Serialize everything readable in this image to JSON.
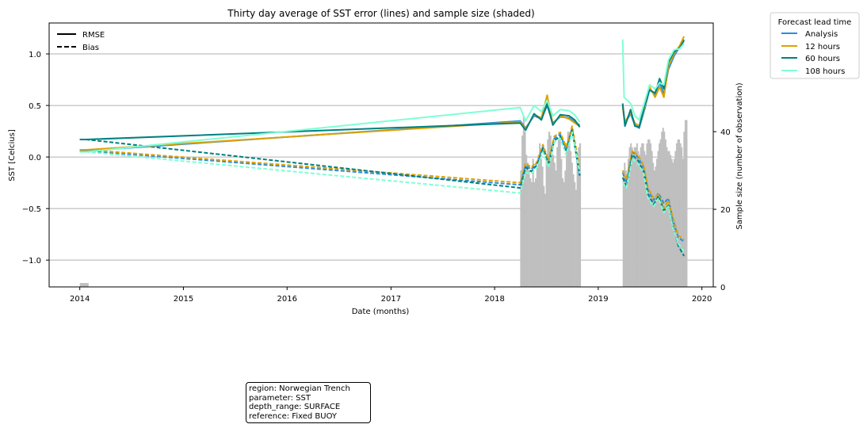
{
  "colors": {
    "analysis": "#2b8ce0",
    "h12": "#e0a100",
    "h60": "#00807f",
    "h108": "#7fffd4",
    "samples": "#bfbfbf",
    "grid": "#b0b0b0"
  },
  "info_box": [
    "region: Norwegian Trench",
    "parameter: SST",
    "depth_range: SURFACE",
    "reference: Fixed BUOY"
  ],
  "chart_data": {
    "type": "line",
    "title": "Thirty day average of SST error (lines) and sample size (shaded)",
    "xlabel": "Date (months)",
    "ylabel": "SST [Celcius]",
    "y2label": "Sample size (number of observation)",
    "x_range": [
      "2013-09-15",
      "2020-02-10"
    ],
    "x_ticks": [
      "2014",
      "2015",
      "2016",
      "2017",
      "2018",
      "2019",
      "2020"
    ],
    "ylim": [
      -1.26,
      1.3
    ],
    "y_ticks": [
      -1.0,
      -0.5,
      0.0,
      0.5,
      1.0
    ],
    "y_tick_labels": [
      "−1.0",
      "−0.5",
      "0.0",
      "0.5",
      "1.0"
    ],
    "y2lim": [
      0,
      68
    ],
    "y2_ticks": [
      0,
      20,
      40
    ],
    "grid": "horizontal",
    "style_legend": {
      "placement": "top-left",
      "entries": [
        {
          "label": "RMSE",
          "dash": "solid"
        },
        {
          "label": "Bias",
          "dash": "dashed"
        }
      ]
    },
    "lead_legend": {
      "title": "Forecast lead time",
      "placement": "outside-right",
      "entries": [
        "Analysis",
        "12 hours",
        "60 hours",
        "108 hours"
      ]
    },
    "series": [
      {
        "name": "Analysis",
        "color_key": "analysis",
        "rmse": [
          [
            "2014-01-01",
            0.06
          ],
          [
            "2014-01-24",
            0.06
          ],
          [
            "2018-04-01",
            0.35
          ],
          [
            "2018-04-20",
            0.28
          ],
          [
            "2018-05-20",
            0.4
          ],
          [
            "2018-06-15",
            0.37
          ],
          [
            "2018-07-05",
            0.5
          ],
          [
            "2018-07-25",
            0.33
          ],
          [
            "2018-08-20",
            0.39
          ],
          [
            "2018-09-20",
            0.38
          ],
          [
            "2018-10-10",
            0.34
          ],
          [
            "2018-10-28",
            0.31
          ],
          [
            "null",
            null
          ],
          [
            "2019-03-28",
            0.5
          ],
          [
            "2019-04-05",
            0.33
          ],
          [
            "2019-04-25",
            0.42
          ],
          [
            "2019-05-10",
            0.31
          ],
          [
            "2019-05-25",
            0.28
          ],
          [
            "2019-06-15",
            0.48
          ],
          [
            "2019-07-01",
            0.66
          ],
          [
            "2019-07-20",
            0.6
          ],
          [
            "2019-08-05",
            0.72
          ],
          [
            "2019-08-20",
            0.61
          ],
          [
            "2019-09-05",
            0.85
          ],
          [
            "2019-09-25",
            0.98
          ],
          [
            "2019-10-15",
            1.07
          ],
          [
            "2019-10-30",
            1.14
          ]
        ],
        "bias": [
          [
            "2014-01-01",
            0.06
          ],
          [
            "2014-01-24",
            0.06
          ],
          [
            "2018-04-01",
            -0.27
          ],
          [
            "2018-04-20",
            -0.08
          ],
          [
            "2018-05-10",
            -0.12
          ],
          [
            "2018-06-01",
            -0.05
          ],
          [
            "2018-06-20",
            0.1
          ],
          [
            "2018-07-10",
            -0.05
          ],
          [
            "2018-07-30",
            0.18
          ],
          [
            "2018-08-20",
            0.22
          ],
          [
            "2018-09-10",
            0.08
          ],
          [
            "2018-10-01",
            0.28
          ],
          [
            "2018-10-28",
            -0.2
          ],
          [
            "null",
            null
          ],
          [
            "2019-03-28",
            -0.15
          ],
          [
            "2019-04-10",
            -0.25
          ],
          [
            "2019-05-01",
            0.05
          ],
          [
            "2019-05-20",
            0.0
          ],
          [
            "2019-06-10",
            -0.1
          ],
          [
            "2019-06-25",
            -0.32
          ],
          [
            "2019-07-15",
            -0.42
          ],
          [
            "2019-08-01",
            -0.35
          ],
          [
            "2019-08-20",
            -0.45
          ],
          [
            "2019-09-05",
            -0.4
          ],
          [
            "2019-09-20",
            -0.6
          ],
          [
            "2019-10-10",
            -0.78
          ],
          [
            "2019-10-30",
            -0.82
          ]
        ]
      },
      {
        "name": "12 hours",
        "color_key": "h12",
        "rmse": [
          [
            "2014-01-01",
            0.07
          ],
          [
            "2014-01-24",
            0.07
          ],
          [
            "2018-04-01",
            0.34
          ],
          [
            "2018-04-20",
            0.27
          ],
          [
            "2018-05-20",
            0.41
          ],
          [
            "2018-06-15",
            0.38
          ],
          [
            "2018-07-05",
            0.6
          ],
          [
            "2018-07-25",
            0.32
          ],
          [
            "2018-08-20",
            0.4
          ],
          [
            "2018-09-20",
            0.37
          ],
          [
            "2018-10-10",
            0.33
          ],
          [
            "2018-10-28",
            0.3
          ],
          [
            "null",
            null
          ],
          [
            "2019-03-28",
            0.48
          ],
          [
            "2019-04-05",
            0.34
          ],
          [
            "2019-04-25",
            0.43
          ],
          [
            "2019-05-10",
            0.33
          ],
          [
            "2019-05-25",
            0.3
          ],
          [
            "2019-06-15",
            0.5
          ],
          [
            "2019-07-01",
            0.68
          ],
          [
            "2019-07-20",
            0.58
          ],
          [
            "2019-08-05",
            0.68
          ],
          [
            "2019-08-20",
            0.58
          ],
          [
            "2019-09-05",
            0.88
          ],
          [
            "2019-09-25",
            1.0
          ],
          [
            "2019-10-15",
            1.08
          ],
          [
            "2019-10-30",
            1.17
          ]
        ],
        "bias": [
          [
            "2014-01-01",
            0.07
          ],
          [
            "2014-01-24",
            0.07
          ],
          [
            "2018-04-01",
            -0.25
          ],
          [
            "2018-04-20",
            -0.06
          ],
          [
            "2018-05-10",
            -0.1
          ],
          [
            "2018-06-01",
            -0.04
          ],
          [
            "2018-06-20",
            0.12
          ],
          [
            "2018-07-10",
            -0.03
          ],
          [
            "2018-07-30",
            0.2
          ],
          [
            "2018-08-20",
            0.24
          ],
          [
            "2018-09-10",
            0.1
          ],
          [
            "2018-10-01",
            0.3
          ],
          [
            "2018-10-28",
            -0.12
          ],
          [
            "null",
            null
          ],
          [
            "2019-03-28",
            -0.13
          ],
          [
            "2019-04-10",
            -0.22
          ],
          [
            "2019-05-01",
            0.06
          ],
          [
            "2019-05-20",
            0.02
          ],
          [
            "2019-06-10",
            -0.08
          ],
          [
            "2019-06-25",
            -0.3
          ],
          [
            "2019-07-15",
            -0.4
          ],
          [
            "2019-08-01",
            -0.36
          ],
          [
            "2019-08-20",
            -0.5
          ],
          [
            "2019-09-05",
            -0.42
          ],
          [
            "2019-09-20",
            -0.58
          ],
          [
            "2019-10-10",
            -0.76
          ],
          [
            "2019-10-30",
            -0.8
          ]
        ]
      },
      {
        "name": "60 hours",
        "color_key": "h60",
        "rmse": [
          [
            "2014-01-01",
            0.17
          ],
          [
            "2014-01-24",
            0.17
          ],
          [
            "2018-04-01",
            0.33
          ],
          [
            "2018-04-20",
            0.26
          ],
          [
            "2018-05-20",
            0.42
          ],
          [
            "2018-06-15",
            0.36
          ],
          [
            "2018-07-05",
            0.52
          ],
          [
            "2018-07-25",
            0.31
          ],
          [
            "2018-08-20",
            0.41
          ],
          [
            "2018-09-20",
            0.4
          ],
          [
            "2018-10-10",
            0.36
          ],
          [
            "2018-10-28",
            0.29
          ],
          [
            "null",
            null
          ],
          [
            "2019-03-28",
            0.52
          ],
          [
            "2019-04-05",
            0.3
          ],
          [
            "2019-04-25",
            0.46
          ],
          [
            "2019-05-10",
            0.3
          ],
          [
            "2019-05-25",
            0.29
          ],
          [
            "2019-06-15",
            0.52
          ],
          [
            "2019-07-01",
            0.65
          ],
          [
            "2019-07-20",
            0.62
          ],
          [
            "2019-08-05",
            0.76
          ],
          [
            "2019-08-20",
            0.66
          ],
          [
            "2019-09-05",
            0.92
          ],
          [
            "2019-09-25",
            1.02
          ],
          [
            "2019-10-15",
            1.06
          ],
          [
            "2019-10-30",
            1.13
          ]
        ],
        "bias": [
          [
            "2014-01-01",
            0.17
          ],
          [
            "2014-01-24",
            0.17
          ],
          [
            "2018-04-01",
            -0.3
          ],
          [
            "2018-04-20",
            -0.1
          ],
          [
            "2018-05-10",
            -0.14
          ],
          [
            "2018-06-01",
            -0.07
          ],
          [
            "2018-06-20",
            0.08
          ],
          [
            "2018-07-10",
            -0.08
          ],
          [
            "2018-07-30",
            0.16
          ],
          [
            "2018-08-20",
            0.2
          ],
          [
            "2018-09-10",
            0.05
          ],
          [
            "2018-10-01",
            0.26
          ],
          [
            "2018-10-28",
            -0.18
          ],
          [
            "null",
            null
          ],
          [
            "2019-03-28",
            -0.2
          ],
          [
            "2019-04-10",
            -0.28
          ],
          [
            "2019-05-01",
            0.02
          ],
          [
            "2019-05-20",
            -0.03
          ],
          [
            "2019-06-10",
            -0.14
          ],
          [
            "2019-06-25",
            -0.36
          ],
          [
            "2019-07-15",
            -0.46
          ],
          [
            "2019-08-01",
            -0.38
          ],
          [
            "2019-08-20",
            -0.52
          ],
          [
            "2019-09-05",
            -0.47
          ],
          [
            "2019-09-20",
            -0.66
          ],
          [
            "2019-10-10",
            -0.86
          ],
          [
            "2019-10-30",
            -0.96
          ]
        ]
      },
      {
        "name": "108 hours",
        "color_key": "h108",
        "rmse": [
          [
            "2014-01-01",
            0.05
          ],
          [
            "2014-01-24",
            0.05
          ],
          [
            "2018-04-01",
            0.48
          ],
          [
            "2018-04-20",
            0.35
          ],
          [
            "2018-05-20",
            0.5
          ],
          [
            "2018-06-15",
            0.44
          ],
          [
            "2018-07-05",
            0.55
          ],
          [
            "2018-07-25",
            0.4
          ],
          [
            "2018-08-20",
            0.46
          ],
          [
            "2018-09-20",
            0.45
          ],
          [
            "2018-10-10",
            0.41
          ],
          [
            "2018-10-28",
            0.34
          ],
          [
            "null",
            null
          ],
          [
            "2019-03-28",
            1.14
          ],
          [
            "2019-04-02",
            0.58
          ],
          [
            "2019-04-25",
            0.52
          ],
          [
            "2019-05-10",
            0.4
          ],
          [
            "2019-05-25",
            0.36
          ],
          [
            "2019-06-15",
            0.55
          ],
          [
            "2019-07-01",
            0.7
          ],
          [
            "2019-07-20",
            0.66
          ],
          [
            "2019-08-05",
            0.72
          ],
          [
            "2019-08-20",
            0.7
          ],
          [
            "2019-09-05",
            0.94
          ],
          [
            "2019-09-25",
            1.04
          ],
          [
            "2019-10-15",
            1.05
          ],
          [
            "2019-10-30",
            1.1
          ]
        ],
        "bias": [
          [
            "2014-01-01",
            0.05
          ],
          [
            "2014-01-24",
            0.05
          ],
          [
            "2018-04-01",
            -0.35
          ],
          [
            "2018-04-20",
            -0.15
          ],
          [
            "2018-05-10",
            -0.16
          ],
          [
            "2018-06-01",
            -0.1
          ],
          [
            "2018-06-20",
            0.05
          ],
          [
            "2018-07-10",
            -0.1
          ],
          [
            "2018-07-30",
            0.14
          ],
          [
            "2018-08-20",
            0.18
          ],
          [
            "2018-09-10",
            0.02
          ],
          [
            "2018-10-01",
            0.24
          ],
          [
            "2018-10-28",
            -0.16
          ],
          [
            "null",
            null
          ],
          [
            "2019-03-28",
            -0.25
          ],
          [
            "2019-04-10",
            -0.3
          ],
          [
            "2019-05-01",
            -0.02
          ],
          [
            "2019-05-20",
            -0.06
          ],
          [
            "2019-06-10",
            -0.16
          ],
          [
            "2019-06-25",
            -0.4
          ],
          [
            "2019-07-15",
            -0.48
          ],
          [
            "2019-08-01",
            -0.4
          ],
          [
            "2019-08-20",
            -0.54
          ],
          [
            "2019-09-05",
            -0.48
          ],
          [
            "2019-09-20",
            -0.68
          ],
          [
            "2019-10-10",
            -0.84
          ],
          [
            "2019-10-30",
            -0.92
          ]
        ]
      }
    ],
    "sample_size": [
      {
        "start": "2014-01-01",
        "end": "2014-01-31",
        "values": [
          1,
          1,
          1,
          1
        ]
      },
      {
        "start": "2018-04-01",
        "end": "2018-10-31",
        "values": [
          30,
          39,
          44,
          40,
          34,
          32,
          30,
          28,
          27,
          33,
          27,
          28,
          31,
          34,
          37,
          33,
          31,
          26,
          24,
          33,
          38,
          40,
          39,
          36,
          34,
          32,
          30,
          36,
          38,
          40,
          33,
          28,
          27,
          30,
          36,
          40,
          39,
          35,
          32,
          29,
          27,
          25,
          32,
          36,
          37
        ]
      },
      {
        "start": "2019-03-28",
        "end": "2019-11-10",
        "values": [
          30,
          32,
          30,
          29,
          33,
          36,
          37,
          36,
          35,
          36,
          36,
          37,
          35,
          34,
          36,
          37,
          37,
          35,
          34,
          37,
          38,
          38,
          37,
          35,
          32,
          30,
          31,
          33,
          35,
          37,
          38,
          40,
          41,
          40,
          38,
          36,
          35,
          35,
          34,
          33,
          32,
          33,
          35,
          37,
          38,
          38,
          37,
          36,
          33,
          40,
          43,
          43
        ]
      }
    ]
  }
}
